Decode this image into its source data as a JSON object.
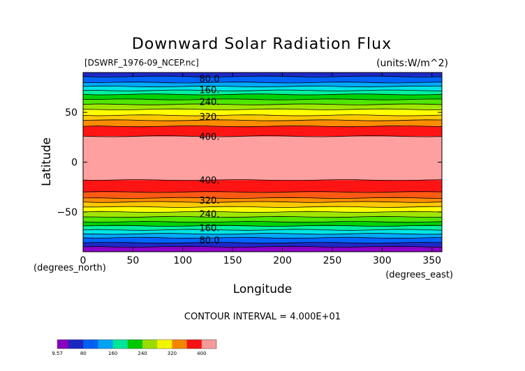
{
  "chart_data": {
    "type": "heatmap",
    "title": "Downward Solar Radiation Flux",
    "file_label": "[DSWRF_1976-09_NCEP.nc]",
    "units_label": "(units:W/m^2)",
    "xlabel": "Longitude",
    "ylabel": "Latitude",
    "x_unit_label": "(degrees_east)",
    "y_unit_label": "(degrees_north)",
    "xlim": [
      0,
      360
    ],
    "ylim": [
      -90,
      90
    ],
    "x_ticks": [
      0,
      50,
      100,
      150,
      200,
      250,
      300,
      350
    ],
    "y_ticks": [
      -50,
      0,
      50
    ],
    "contour_interval_text": "CONTOUR INTERVAL = 4.000E+01",
    "contour_labels": [
      {
        "text": "80.0",
        "lat": 84
      },
      {
        "text": "160.",
        "lat": 73
      },
      {
        "text": "240.",
        "lat": 61
      },
      {
        "text": "320.",
        "lat": 46
      },
      {
        "text": "400.",
        "lat": 26
      },
      {
        "text": "400.",
        "lat": -18
      },
      {
        "text": "320.",
        "lat": -38
      },
      {
        "text": "240.",
        "lat": -52
      },
      {
        "text": "160.",
        "lat": -66
      },
      {
        "text": "80.0",
        "lat": -78
      }
    ],
    "bands": [
      {
        "lat_from": 86,
        "lat_to": 90,
        "color": "#1e28c8"
      },
      {
        "lat_from": 80,
        "lat_to": 86,
        "color": "#0064ff"
      },
      {
        "lat_from": 76,
        "lat_to": 80,
        "color": "#00aaff"
      },
      {
        "lat_from": 72,
        "lat_to": 76,
        "color": "#00e6e6"
      },
      {
        "lat_from": 68,
        "lat_to": 72,
        "color": "#00f0a0"
      },
      {
        "lat_from": 63,
        "lat_to": 68,
        "color": "#00d200"
      },
      {
        "lat_from": 58,
        "lat_to": 63,
        "color": "#50e600"
      },
      {
        "lat_from": 53,
        "lat_to": 58,
        "color": "#a0e600"
      },
      {
        "lat_from": 47,
        "lat_to": 53,
        "color": "#ffff00"
      },
      {
        "lat_from": 42,
        "lat_to": 47,
        "color": "#ffc800"
      },
      {
        "lat_from": 36,
        "lat_to": 42,
        "color": "#ff8c00"
      },
      {
        "lat_from": 26,
        "lat_to": 36,
        "color": "#ff1414"
      },
      {
        "lat_from": -18,
        "lat_to": 26,
        "color": "#ffa0a0"
      },
      {
        "lat_from": -30,
        "lat_to": -18,
        "color": "#ff1414"
      },
      {
        "lat_from": -36,
        "lat_to": -30,
        "color": "#ff5a14"
      },
      {
        "lat_from": -40,
        "lat_to": -36,
        "color": "#ff8c00"
      },
      {
        "lat_from": -45,
        "lat_to": -40,
        "color": "#ffc800"
      },
      {
        "lat_from": -50,
        "lat_to": -45,
        "color": "#ffff00"
      },
      {
        "lat_from": -55,
        "lat_to": -50,
        "color": "#a0e600"
      },
      {
        "lat_from": -60,
        "lat_to": -55,
        "color": "#50e600"
      },
      {
        "lat_from": -64,
        "lat_to": -60,
        "color": "#00d200"
      },
      {
        "lat_from": -68,
        "lat_to": -64,
        "color": "#00f0a0"
      },
      {
        "lat_from": -72,
        "lat_to": -68,
        "color": "#00e6e6"
      },
      {
        "lat_from": -76,
        "lat_to": -72,
        "color": "#00aaff"
      },
      {
        "lat_from": -81,
        "lat_to": -76,
        "color": "#0064ff"
      },
      {
        "lat_from": -85,
        "lat_to": -81,
        "color": "#1e28c8"
      },
      {
        "lat_from": -90,
        "lat_to": -85,
        "color": "#8c00c8"
      }
    ],
    "colorbar": {
      "tick_labels": [
        {
          "text": "9.57",
          "value": 9.57
        },
        {
          "text": "80",
          "value": 80
        },
        {
          "text": "160",
          "value": 160
        },
        {
          "text": "240",
          "value": 240
        },
        {
          "text": "320",
          "value": 320
        },
        {
          "text": "400",
          "value": 400
        }
      ],
      "segments": [
        {
          "from": 9.57,
          "to": 40,
          "color": "#8c00c8"
        },
        {
          "from": 40,
          "to": 80,
          "color": "#1e28c8"
        },
        {
          "from": 80,
          "to": 120,
          "color": "#0064ff"
        },
        {
          "from": 120,
          "to": 160,
          "color": "#00aaff"
        },
        {
          "from": 160,
          "to": 200,
          "color": "#00f0a0"
        },
        {
          "from": 200,
          "to": 240,
          "color": "#00d200"
        },
        {
          "from": 240,
          "to": 280,
          "color": "#a0e600"
        },
        {
          "from": 280,
          "to": 320,
          "color": "#ffff00"
        },
        {
          "from": 320,
          "to": 360,
          "color": "#ff8c00"
        },
        {
          "from": 360,
          "to": 400,
          "color": "#ff1414"
        },
        {
          "from": 400,
          "to": 440,
          "color": "#ffa0a0"
        }
      ]
    }
  }
}
